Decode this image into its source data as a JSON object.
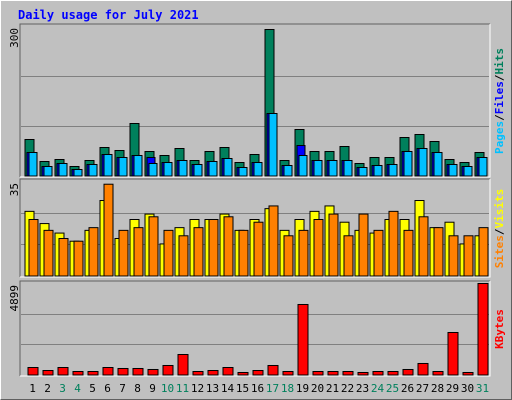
{
  "title": "Daily usage for July 2021",
  "legend_separator": "/",
  "chart_data": [
    {
      "type": "bar",
      "ylim": [
        0,
        300
      ],
      "yticks": [
        300
      ],
      "grid_lines": [
        100,
        200
      ],
      "series": [
        {
          "name": "Hits",
          "color": "#00805c",
          "values": [
            74,
            30,
            34,
            20,
            32,
            58,
            52,
            106,
            50,
            42,
            56,
            32,
            50,
            58,
            28,
            44,
            294,
            32,
            94,
            50,
            50,
            60,
            26,
            38,
            38,
            78,
            84,
            70,
            34,
            28,
            48
          ]
        },
        {
          "name": "Files",
          "color": "#0000ff",
          "values": [
            48,
            20,
            26,
            14,
            24,
            44,
            38,
            42,
            38,
            28,
            32,
            24,
            30,
            36,
            18,
            28,
            126,
            22,
            62,
            32,
            32,
            32,
            18,
            22,
            24,
            50,
            56,
            48,
            24,
            20,
            38
          ]
        },
        {
          "name": "Pages",
          "color": "#00c0ff",
          "values": [
            48,
            20,
            26,
            14,
            24,
            44,
            38,
            42,
            26,
            28,
            32,
            24,
            30,
            36,
            18,
            28,
            126,
            22,
            42,
            32,
            32,
            32,
            18,
            22,
            24,
            50,
            56,
            48,
            24,
            20,
            38
          ]
        }
      ]
    },
    {
      "type": "bar",
      "ylim": [
        0,
        35
      ],
      "yticks": [
        35
      ],
      "grid_lines": [
        11.67,
        23.33
      ],
      "series": [
        {
          "name": "Visits",
          "color": "#ffff00",
          "values": [
            24,
            19.5,
            16,
            13,
            17,
            28,
            14,
            21,
            23,
            12,
            18,
            21,
            21,
            23,
            17,
            21,
            25,
            17,
            21,
            24,
            26,
            20,
            17,
            16,
            21,
            21,
            28,
            18,
            20,
            12,
            15
          ]
        },
        {
          "name": "Sites",
          "color": "#ff8000",
          "values": [
            21,
            17,
            14,
            13,
            18,
            34,
            17,
            18,
            22,
            17,
            15,
            18,
            21,
            22,
            17,
            20,
            26,
            15,
            17,
            21,
            23,
            15,
            23,
            17,
            24,
            17,
            22,
            18,
            15,
            15,
            18
          ]
        }
      ]
    },
    {
      "type": "bar",
      "ylim": [
        0,
        4899
      ],
      "yticks": [
        4899
      ],
      "grid_lines": [
        1633,
        3266
      ],
      "categories": [
        "1",
        "2",
        "3",
        "4",
        "5",
        "6",
        "7",
        "8",
        "9",
        "10",
        "11",
        "12",
        "13",
        "14",
        "15",
        "16",
        "17",
        "18",
        "19",
        "20",
        "21",
        "22",
        "23",
        "24",
        "25",
        "26",
        "27",
        "28",
        "29",
        "30",
        "31"
      ],
      "category_colors": [
        "#000000",
        "#000000",
        "#00805c",
        "#00805c",
        "#000000",
        "#000000",
        "#000000",
        "#000000",
        "#000000",
        "#00805c",
        "#00805c",
        "#000000",
        "#000000",
        "#000000",
        "#000000",
        "#000000",
        "#00805c",
        "#00805c",
        "#000000",
        "#000000",
        "#000000",
        "#000000",
        "#000000",
        "#00805c",
        "#00805c",
        "#000000",
        "#000000",
        "#000000",
        "#000000",
        "#000000",
        "#00805c"
      ],
      "series": [
        {
          "name": "KBytes",
          "color": "#ff0000",
          "values": [
            426,
            266,
            426,
            213,
            213,
            426,
            373,
            373,
            320,
            533,
            1118,
            213,
            266,
            426,
            160,
            266,
            533,
            213,
            3781,
            213,
            213,
            213,
            160,
            213,
            213,
            320,
            640,
            213,
            2290,
            160,
            4899
          ]
        }
      ]
    }
  ]
}
